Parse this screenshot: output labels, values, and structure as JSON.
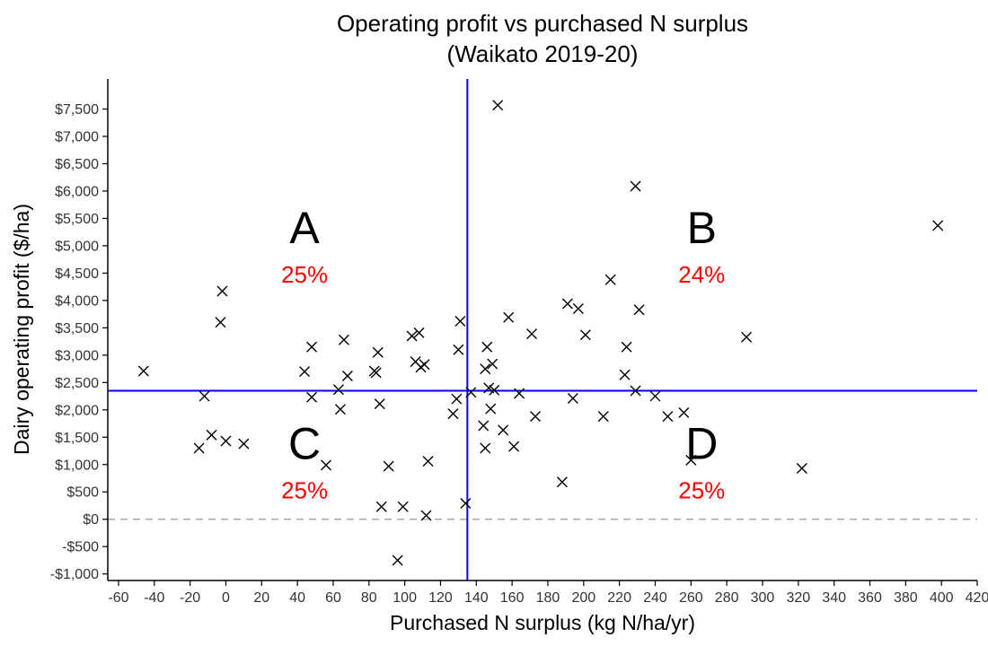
{
  "chart_data": {
    "type": "scatter",
    "title": "Operating profit vs purchased N surplus",
    "subtitle": "(Waikato 2019-20)",
    "xlabel": "Purchased N surplus (kg N/ha/yr)",
    "ylabel": "Dairy operating profit ($/ha)",
    "xlim": [
      -66,
      420
    ],
    "ylim": [
      -1120,
      8050
    ],
    "xticks": [
      -60,
      -40,
      -20,
      0,
      20,
      40,
      60,
      80,
      100,
      120,
      140,
      160,
      180,
      200,
      220,
      240,
      260,
      280,
      300,
      320,
      340,
      360,
      380,
      400,
      420
    ],
    "xtick_labels": [
      "-60",
      "-40",
      "-20",
      "0",
      "20",
      "40",
      "60",
      "80",
      "100",
      "120",
      "140",
      "160",
      "180",
      "200",
      "220",
      "240",
      "260",
      "280",
      "300",
      "320",
      "340",
      "360",
      "380",
      "400",
      "420"
    ],
    "yticks": [
      -1000,
      -500,
      0,
      500,
      1000,
      1500,
      2000,
      2500,
      3000,
      3500,
      4000,
      4500,
      5000,
      5500,
      6000,
      6500,
      7000,
      7500
    ],
    "ytick_labels": [
      "-$1,000",
      "-$500",
      "$0",
      "$500",
      "$1,000",
      "$1,500",
      "$2,000",
      "$2,500",
      "$3,000",
      "$3,500",
      "$4,000",
      "$4,500",
      "$5,000",
      "$5,500",
      "$6,000",
      "$6,500",
      "$7,000",
      "$7,500"
    ],
    "grid": false,
    "marker": "x",
    "colors": {
      "points": "#000000",
      "median_lines": "#0000ff",
      "zero_line": "#aaaaaa",
      "quadrant_pct": "#ff0000",
      "quadrant_letter": "#000000"
    },
    "median_x": 135,
    "median_y": 2350,
    "zero_line_y": 0,
    "quadrants": [
      {
        "label": "A",
        "percent": "25%",
        "x": 44,
        "y": 5050
      },
      {
        "label": "B",
        "percent": "24%",
        "x": 266,
        "y": 5050
      },
      {
        "label": "C",
        "percent": "25%",
        "x": 44,
        "y": 1100
      },
      {
        "label": "D",
        "percent": "25%",
        "x": 266,
        "y": 1100
      }
    ],
    "points": [
      {
        "x": -46,
        "y": 2710
      },
      {
        "x": -15,
        "y": 1300
      },
      {
        "x": -12,
        "y": 2250
      },
      {
        "x": -8,
        "y": 1540
      },
      {
        "x": -3,
        "y": 3600
      },
      {
        "x": -2,
        "y": 4170
      },
      {
        "x": 0,
        "y": 1430
      },
      {
        "x": 10,
        "y": 1380
      },
      {
        "x": 44,
        "y": 2700
      },
      {
        "x": 48,
        "y": 3150
      },
      {
        "x": 48,
        "y": 2230
      },
      {
        "x": 56,
        "y": 990
      },
      {
        "x": 63,
        "y": 2370
      },
      {
        "x": 64,
        "y": 2010
      },
      {
        "x": 66,
        "y": 3280
      },
      {
        "x": 68,
        "y": 2620
      },
      {
        "x": 83,
        "y": 2710
      },
      {
        "x": 84,
        "y": 2680
      },
      {
        "x": 85,
        "y": 3050
      },
      {
        "x": 86,
        "y": 2110
      },
      {
        "x": 87,
        "y": 230
      },
      {
        "x": 91,
        "y": 970
      },
      {
        "x": 96,
        "y": -750
      },
      {
        "x": 99,
        "y": 230
      },
      {
        "x": 104,
        "y": 3350
      },
      {
        "x": 106,
        "y": 2880
      },
      {
        "x": 108,
        "y": 3410
      },
      {
        "x": 109,
        "y": 2780
      },
      {
        "x": 111,
        "y": 2830
      },
      {
        "x": 112,
        "y": 70
      },
      {
        "x": 113,
        "y": 1060
      },
      {
        "x": 127,
        "y": 1930
      },
      {
        "x": 129,
        "y": 2200
      },
      {
        "x": 130,
        "y": 3100
      },
      {
        "x": 131,
        "y": 3620
      },
      {
        "x": 134,
        "y": 290
      },
      {
        "x": 137,
        "y": 2320
      },
      {
        "x": 152,
        "y": 7570
      },
      {
        "x": 144,
        "y": 1710
      },
      {
        "x": 145,
        "y": 1300
      },
      {
        "x": 145,
        "y": 2750
      },
      {
        "x": 146,
        "y": 3150
      },
      {
        "x": 147,
        "y": 2400
      },
      {
        "x": 148,
        "y": 2020
      },
      {
        "x": 149,
        "y": 2840
      },
      {
        "x": 150,
        "y": 2360
      },
      {
        "x": 155,
        "y": 1630
      },
      {
        "x": 158,
        "y": 3690
      },
      {
        "x": 161,
        "y": 1330
      },
      {
        "x": 164,
        "y": 2300
      },
      {
        "x": 171,
        "y": 3390
      },
      {
        "x": 173,
        "y": 1880
      },
      {
        "x": 188,
        "y": 680
      },
      {
        "x": 191,
        "y": 3940
      },
      {
        "x": 194,
        "y": 2210
      },
      {
        "x": 197,
        "y": 3850
      },
      {
        "x": 201,
        "y": 3370
      },
      {
        "x": 211,
        "y": 1880
      },
      {
        "x": 215,
        "y": 4380
      },
      {
        "x": 223,
        "y": 2640
      },
      {
        "x": 224,
        "y": 3150
      },
      {
        "x": 229,
        "y": 6090
      },
      {
        "x": 229,
        "y": 2350
      },
      {
        "x": 231,
        "y": 3830
      },
      {
        "x": 240,
        "y": 2250
      },
      {
        "x": 247,
        "y": 1880
      },
      {
        "x": 256,
        "y": 1950
      },
      {
        "x": 260,
        "y": 1080
      },
      {
        "x": 291,
        "y": 3330
      },
      {
        "x": 322,
        "y": 930
      },
      {
        "x": 398,
        "y": 5370
      }
    ]
  }
}
